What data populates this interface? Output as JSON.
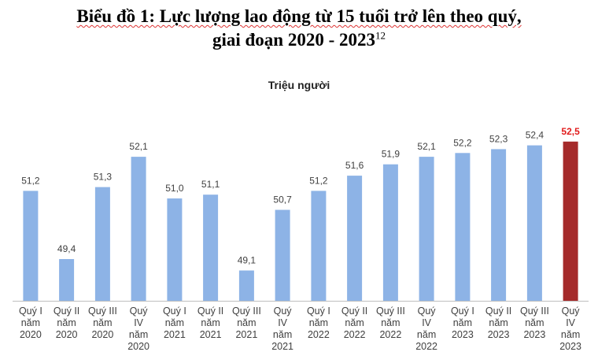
{
  "title": {
    "line1": "Biểu đồ 1: Lực lượng lao động từ 15 tuổi trở lên theo quý,",
    "line2": "giai đoạn 2020 - 2023",
    "footnote": "12"
  },
  "colors": {
    "bar": "#8db3e6",
    "highlight_bar": "#a52a2a",
    "highlight_label": "#e11b1b",
    "axis": "#bfbfbf",
    "text": "#404040"
  },
  "chart_data": {
    "type": "bar",
    "ylabel": "Triệu người",
    "categories": [
      [
        "Quý I",
        "năm",
        "2020"
      ],
      [
        "Quý II",
        "năm",
        "2020"
      ],
      [
        "Quý III",
        "năm",
        "2020"
      ],
      [
        "Quý",
        "IV",
        "năm",
        "2020"
      ],
      [
        "Quý I",
        "năm",
        "2021"
      ],
      [
        "Quý II",
        "năm",
        "2021"
      ],
      [
        "Quý III",
        "năm",
        "2021"
      ],
      [
        "Quý",
        "IV",
        "năm",
        "2021"
      ],
      [
        "Quý I",
        "năm",
        "2022"
      ],
      [
        "Quý II",
        "năm",
        "2022"
      ],
      [
        "Quý III",
        "năm",
        "2022"
      ],
      [
        "Quý",
        "IV",
        "năm",
        "2022"
      ],
      [
        "Quý I",
        "năm",
        "2023"
      ],
      [
        "Quý II",
        "năm",
        "2023"
      ],
      [
        "Quý III",
        "năm",
        "2023"
      ],
      [
        "Quý",
        "IV",
        "năm",
        "2023"
      ]
    ],
    "values": [
      51.2,
      49.4,
      51.3,
      52.1,
      51.0,
      51.1,
      49.1,
      50.7,
      51.2,
      51.6,
      51.9,
      52.1,
      52.2,
      52.3,
      52.4,
      52.5
    ],
    "value_labels": [
      "51,2",
      "49,4",
      "51,3",
      "52,1",
      "51,0",
      "51,1",
      "49,1",
      "50,7",
      "51,2",
      "51,6",
      "51,9",
      "52,1",
      "52,2",
      "52,3",
      "52,4",
      "52,5"
    ],
    "highlight_index": 15,
    "ylim": [
      48.3,
      52.6
    ],
    "grid": false,
    "legend": "none"
  }
}
